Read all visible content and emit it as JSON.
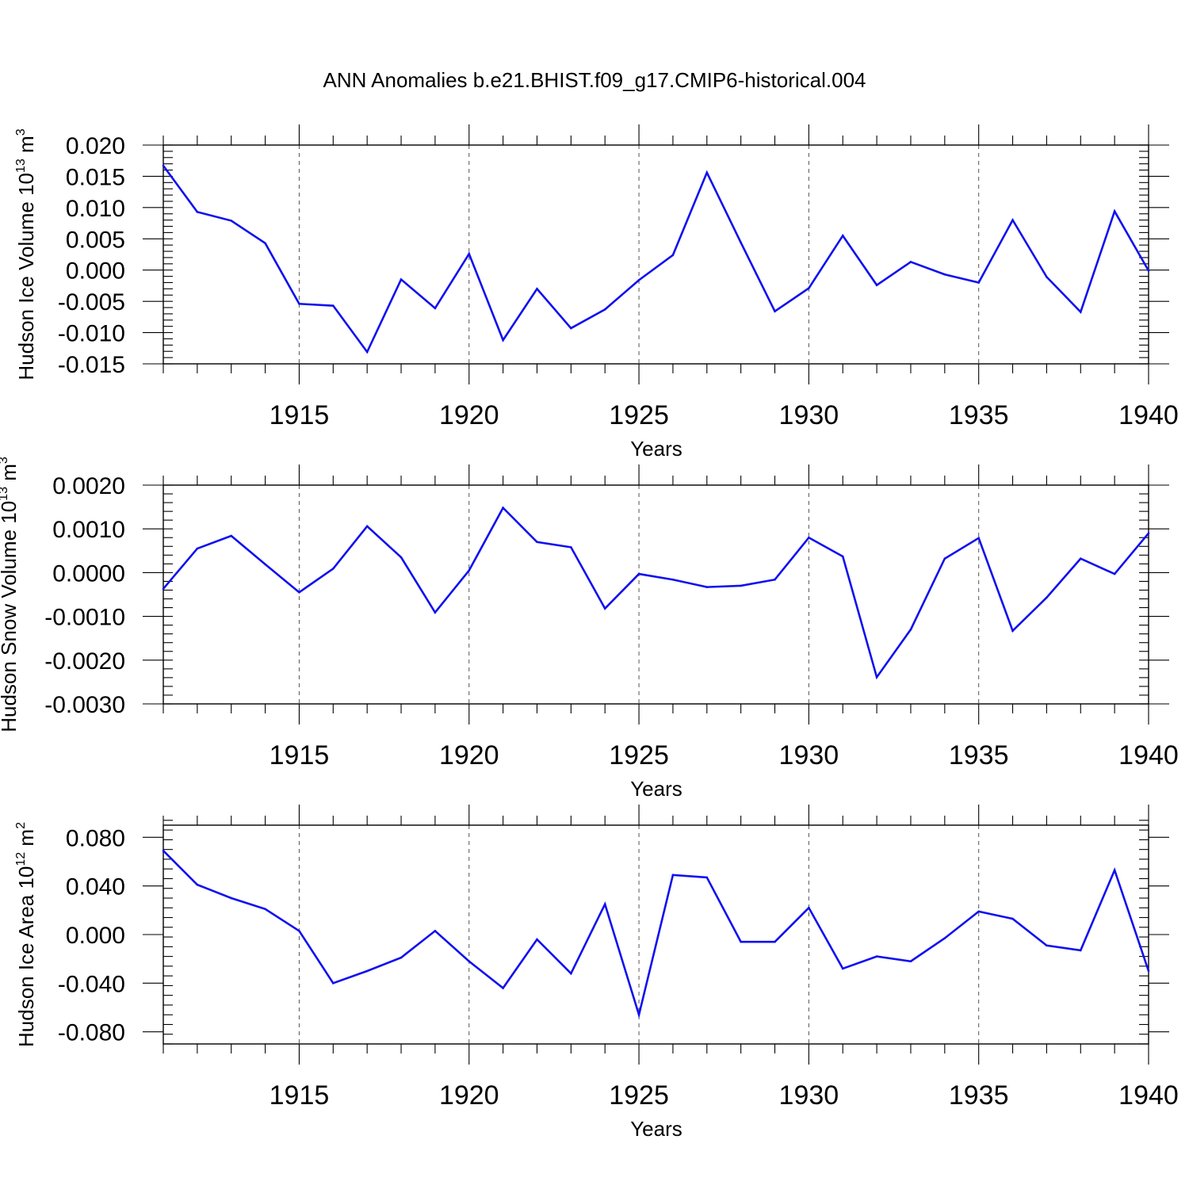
{
  "title": "ANN Anomalies b.e21.BHIST.f09_g17.CMIP6-historical.004",
  "colors": {
    "line": "#1010f0",
    "axis": "#000000",
    "grid": "#555555",
    "background": "#ffffff"
  },
  "chart_data": [
    {
      "type": "line",
      "ylabel_main": "Hudson Ice Volume 10",
      "ylabel_exp": "13",
      "ylabel_unit": "m",
      "ylabel_unit_exp": "3",
      "xlabel": "Years",
      "xlim": [
        1911,
        1940
      ],
      "ylim": [
        -0.015,
        0.02
      ],
      "yticks": [
        -0.015,
        -0.01,
        -0.005,
        0.0,
        0.005,
        0.01,
        0.015,
        0.02
      ],
      "ytick_labels": [
        "-0.015",
        "-0.010",
        "-0.005",
        "0.000",
        "0.005",
        "0.010",
        "0.015",
        "0.020"
      ],
      "xticks": [
        1915,
        1920,
        1925,
        1930,
        1935,
        1940
      ],
      "xtick_labels": [
        "1915",
        "1920",
        "1925",
        "1930",
        "1935",
        "1940"
      ],
      "grid_x": [
        1915,
        1920,
        1925,
        1930,
        1935
      ],
      "series": [
        {
          "name": "Hudson Ice Volume",
          "x": [
            1911,
            1912,
            1913,
            1914,
            1915,
            1916,
            1917,
            1918,
            1919,
            1920,
            1921,
            1922,
            1923,
            1924,
            1925,
            1926,
            1927,
            1928,
            1929,
            1930,
            1931,
            1932,
            1933,
            1934,
            1935,
            1936,
            1937,
            1938,
            1939,
            1940
          ],
          "values": [
            0.0167,
            0.0093,
            0.0079,
            0.0043,
            -0.0054,
            -0.0057,
            -0.0131,
            -0.0015,
            -0.0061,
            0.0026,
            -0.0112,
            -0.003,
            -0.0093,
            -0.0063,
            -0.0016,
            0.0024,
            0.0156,
            0.0044,
            -0.0066,
            -0.0029,
            0.0055,
            -0.0024,
            0.0013,
            -0.0007,
            -0.002,
            0.008,
            -0.0011,
            -0.0067,
            0.0094,
            -0.0001
          ]
        }
      ]
    },
    {
      "type": "line",
      "ylabel_main": "Hudson Snow Volume 10",
      "ylabel_exp": "13",
      "ylabel_unit": "m",
      "ylabel_unit_exp": "3",
      "xlabel": "Years",
      "xlim": [
        1911,
        1940
      ],
      "ylim": [
        -0.003,
        0.002
      ],
      "yticks": [
        -0.003,
        -0.002,
        -0.001,
        0.0,
        0.001,
        0.002
      ],
      "ytick_labels": [
        "-0.0030",
        "-0.0020",
        "-0.0010",
        "0.0000",
        "0.0010",
        "0.0020"
      ],
      "xticks": [
        1915,
        1920,
        1925,
        1930,
        1935,
        1940
      ],
      "xtick_labels": [
        "1915",
        "1920",
        "1925",
        "1930",
        "1935",
        "1940"
      ],
      "grid_x": [
        1915,
        1920,
        1925,
        1930,
        1935
      ],
      "series": [
        {
          "name": "Hudson Snow Volume",
          "x": [
            1911,
            1912,
            1913,
            1914,
            1915,
            1916,
            1917,
            1918,
            1919,
            1920,
            1921,
            1922,
            1923,
            1924,
            1925,
            1926,
            1927,
            1928,
            1929,
            1930,
            1931,
            1932,
            1933,
            1934,
            1935,
            1936,
            1937,
            1938,
            1939,
            1940
          ],
          "values": [
            -0.00037,
            0.00055,
            0.00084,
            0.00019,
            -0.00045,
            9e-05,
            0.00106,
            0.00035,
            -0.00091,
            5e-05,
            0.00148,
            0.0007,
            0.00058,
            -0.00082,
            -3e-05,
            -0.00016,
            -0.00033,
            -0.0003,
            -0.00016,
            0.0008,
            0.00037,
            -0.00239,
            -0.0013,
            0.00032,
            0.00079,
            -0.00133,
            -0.00057,
            0.00032,
            -3e-05,
            0.0009
          ]
        }
      ]
    },
    {
      "type": "line",
      "ylabel_main": "Hudson Ice Area 10",
      "ylabel_exp": "12",
      "ylabel_unit": "m",
      "ylabel_unit_exp": "2",
      "xlabel": "Years",
      "xlim": [
        1911,
        1940
      ],
      "ylim": [
        -0.09,
        0.09
      ],
      "yticks": [
        -0.08,
        -0.04,
        0.0,
        0.04,
        0.08
      ],
      "ytick_labels": [
        "-0.080",
        "-0.040",
        "0.000",
        "0.040",
        "0.080"
      ],
      "xticks": [
        1915,
        1920,
        1925,
        1930,
        1935,
        1940
      ],
      "xtick_labels": [
        "1915",
        "1920",
        "1925",
        "1930",
        "1935",
        "1940"
      ],
      "grid_x": [
        1915,
        1920,
        1925,
        1930,
        1935
      ],
      "series": [
        {
          "name": "Hudson Ice Area",
          "x": [
            1911,
            1912,
            1913,
            1914,
            1915,
            1916,
            1917,
            1918,
            1919,
            1920,
            1921,
            1922,
            1923,
            1924,
            1925,
            1926,
            1927,
            1928,
            1929,
            1930,
            1931,
            1932,
            1933,
            1934,
            1935,
            1936,
            1937,
            1938,
            1939,
            1940
          ],
          "values": [
            0.069,
            0.041,
            0.03,
            0.021,
            0.003,
            -0.04,
            -0.03,
            -0.019,
            0.003,
            -0.022,
            -0.044,
            -0.004,
            -0.032,
            0.025,
            -0.066,
            0.049,
            0.047,
            -0.006,
            -0.006,
            0.022,
            -0.028,
            -0.018,
            -0.022,
            -0.003,
            0.019,
            0.013,
            -0.009,
            -0.013,
            0.053,
            -0.03
          ]
        }
      ]
    }
  ]
}
